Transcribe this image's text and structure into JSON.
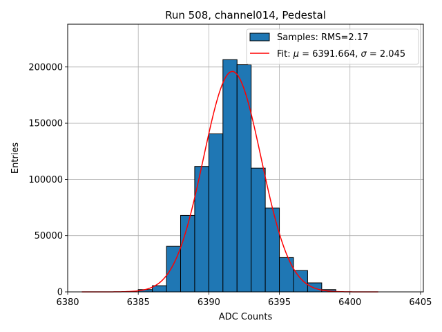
{
  "chart_data": {
    "type": "bar",
    "title": "Run 508, channel014, Pedestal",
    "xlabel": "ADC Counts",
    "ylabel": "Entries",
    "xlim": [
      6380,
      6405.2
    ],
    "ylim": [
      0,
      238000
    ],
    "xticks": [
      6380,
      6385,
      6390,
      6395,
      6400,
      6405
    ],
    "yticks": [
      0,
      50000,
      100000,
      150000,
      200000
    ],
    "grid": true,
    "legend_position": "top-right",
    "bin_width": 1,
    "bins_left_edges": [
      6385,
      6386,
      6387,
      6388,
      6389,
      6390,
      6391,
      6392,
      6393,
      6394,
      6395,
      6396,
      6397,
      6398
    ],
    "counts": [
      2000,
      5500,
      40500,
      68000,
      111500,
      140500,
      206500,
      202000,
      110000,
      74500,
      30500,
      19000,
      8000,
      2000
    ],
    "fit": {
      "mu": 6391.664,
      "sigma": 2.045,
      "amplitude": 196000,
      "x_range": [
        6381,
        6402
      ]
    },
    "series": [
      {
        "name": "Samples: RMS=2.17",
        "kind": "histogram",
        "color": "#1f77b4"
      },
      {
        "name": "Fit: μ = 6391.664, σ = 2.045",
        "kind": "line",
        "color": "#ff0000"
      }
    ]
  },
  "legend": {
    "samples_label": "Samples: RMS=2.17",
    "fit_prefix": "Fit: ",
    "fit_mu_symbol": "μ",
    "fit_mu_value": " = 6391.664, ",
    "fit_sigma_symbol": "σ",
    "fit_sigma_value": " = 2.045"
  }
}
